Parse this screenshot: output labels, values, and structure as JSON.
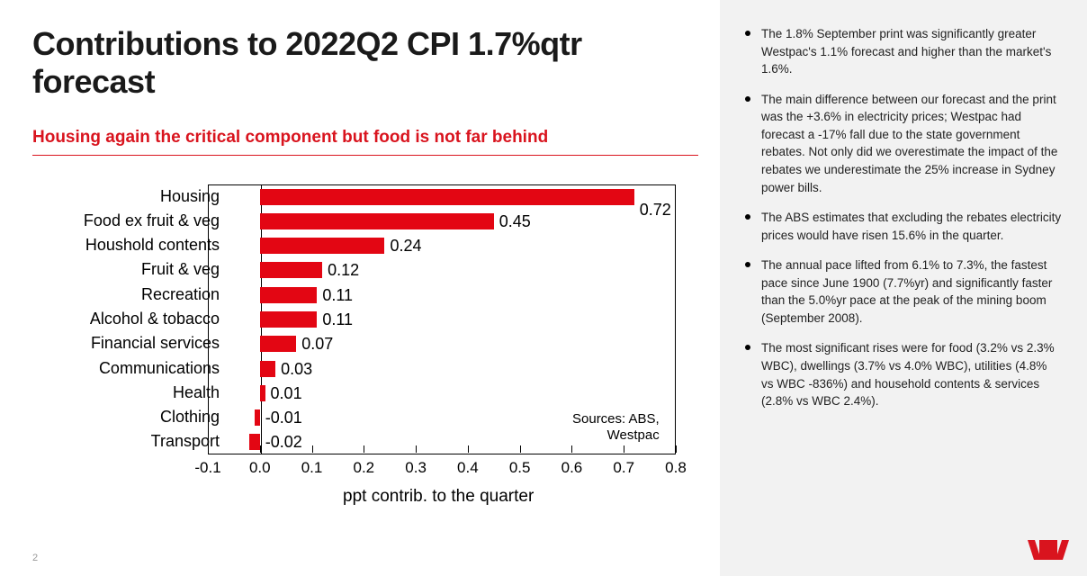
{
  "title": "Contributions to 2022Q2 CPI 1.7%qtr forecast",
  "subtitle": "Housing again the critical component but food is not far behind",
  "page_number": "2",
  "chart": {
    "type": "bar-horizontal",
    "xlim": [
      -0.1,
      0.8
    ],
    "xticks": [
      -0.1,
      0.0,
      0.1,
      0.2,
      0.3,
      0.4,
      0.5,
      0.6,
      0.7,
      0.8
    ],
    "xtick_labels": [
      "-0.1",
      "0.0",
      "0.1",
      "0.2",
      "0.3",
      "0.4",
      "0.5",
      "0.6",
      "0.7",
      "0.8"
    ],
    "xlabel": "ppt contrib. to the quarter",
    "bar_color": "#e30613",
    "plot_border_color": "#000000",
    "grid_color": "#000000",
    "background_color": "#ffffff",
    "label_fontsize": 18,
    "tick_fontsize": 17,
    "xlabel_fontsize": 19,
    "categories": [
      {
        "label": "Housing",
        "value": 0.72,
        "text": "0.72",
        "label_offset_y": 14
      },
      {
        "label": "Food ex fruit & veg",
        "value": 0.45,
        "text": "0.45"
      },
      {
        "label": "Houshold contents",
        "value": 0.24,
        "text": "0.24"
      },
      {
        "label": "Fruit & veg",
        "value": 0.12,
        "text": "0.12"
      },
      {
        "label": "Recreation",
        "value": 0.11,
        "text": "0.11"
      },
      {
        "label": "Alcohol & tobacco",
        "value": 0.11,
        "text": "0.11"
      },
      {
        "label": "Financial services",
        "value": 0.07,
        "text": "0.07"
      },
      {
        "label": "Communications",
        "value": 0.03,
        "text": "0.03"
      },
      {
        "label": "Health",
        "value": 0.01,
        "text": "0.01"
      },
      {
        "label": "Clothing",
        "value": -0.01,
        "text": "-0.01"
      },
      {
        "label": "Transport",
        "value": -0.02,
        "text": "-0.02"
      }
    ],
    "source_lines": [
      "Sources: ABS,",
      "Westpac"
    ]
  },
  "bullets": [
    "The 1.8% September print was significantly greater Westpac's 1.1% forecast and higher than the market's 1.6%.",
    "The main difference between our forecast and the print was the +3.6% in electricity prices; Westpac had forecast a -17% fall due to the state government rebates. Not only did we overestimate the impact of the rebates we underestimate the 25% increase in Sydney power bills.",
    "The ABS estimates that excluding the rebates electricity prices would have risen 15.6% in the quarter.",
    "The annual pace lifted from 6.1% to 7.3%, the fastest pace since June 1900 (7.7%yr) and significantly faster than the 5.0%yr pace at the peak of the mining boom (September 2008).",
    "The most significant rises were for food (3.2% vs 2.3% WBC), dwellings (3.7% vs 4.0% WBC), utilities (4.8% vs WBC -836%) and household contents & services (2.8% vs WBC 2.4%)."
  ],
  "colors": {
    "accent_red": "#d9141e",
    "bar_red": "#e30613",
    "sidebar_bg": "#f2f2f2",
    "text": "#1a1a1a"
  },
  "logo_name": "westpac-logo"
}
